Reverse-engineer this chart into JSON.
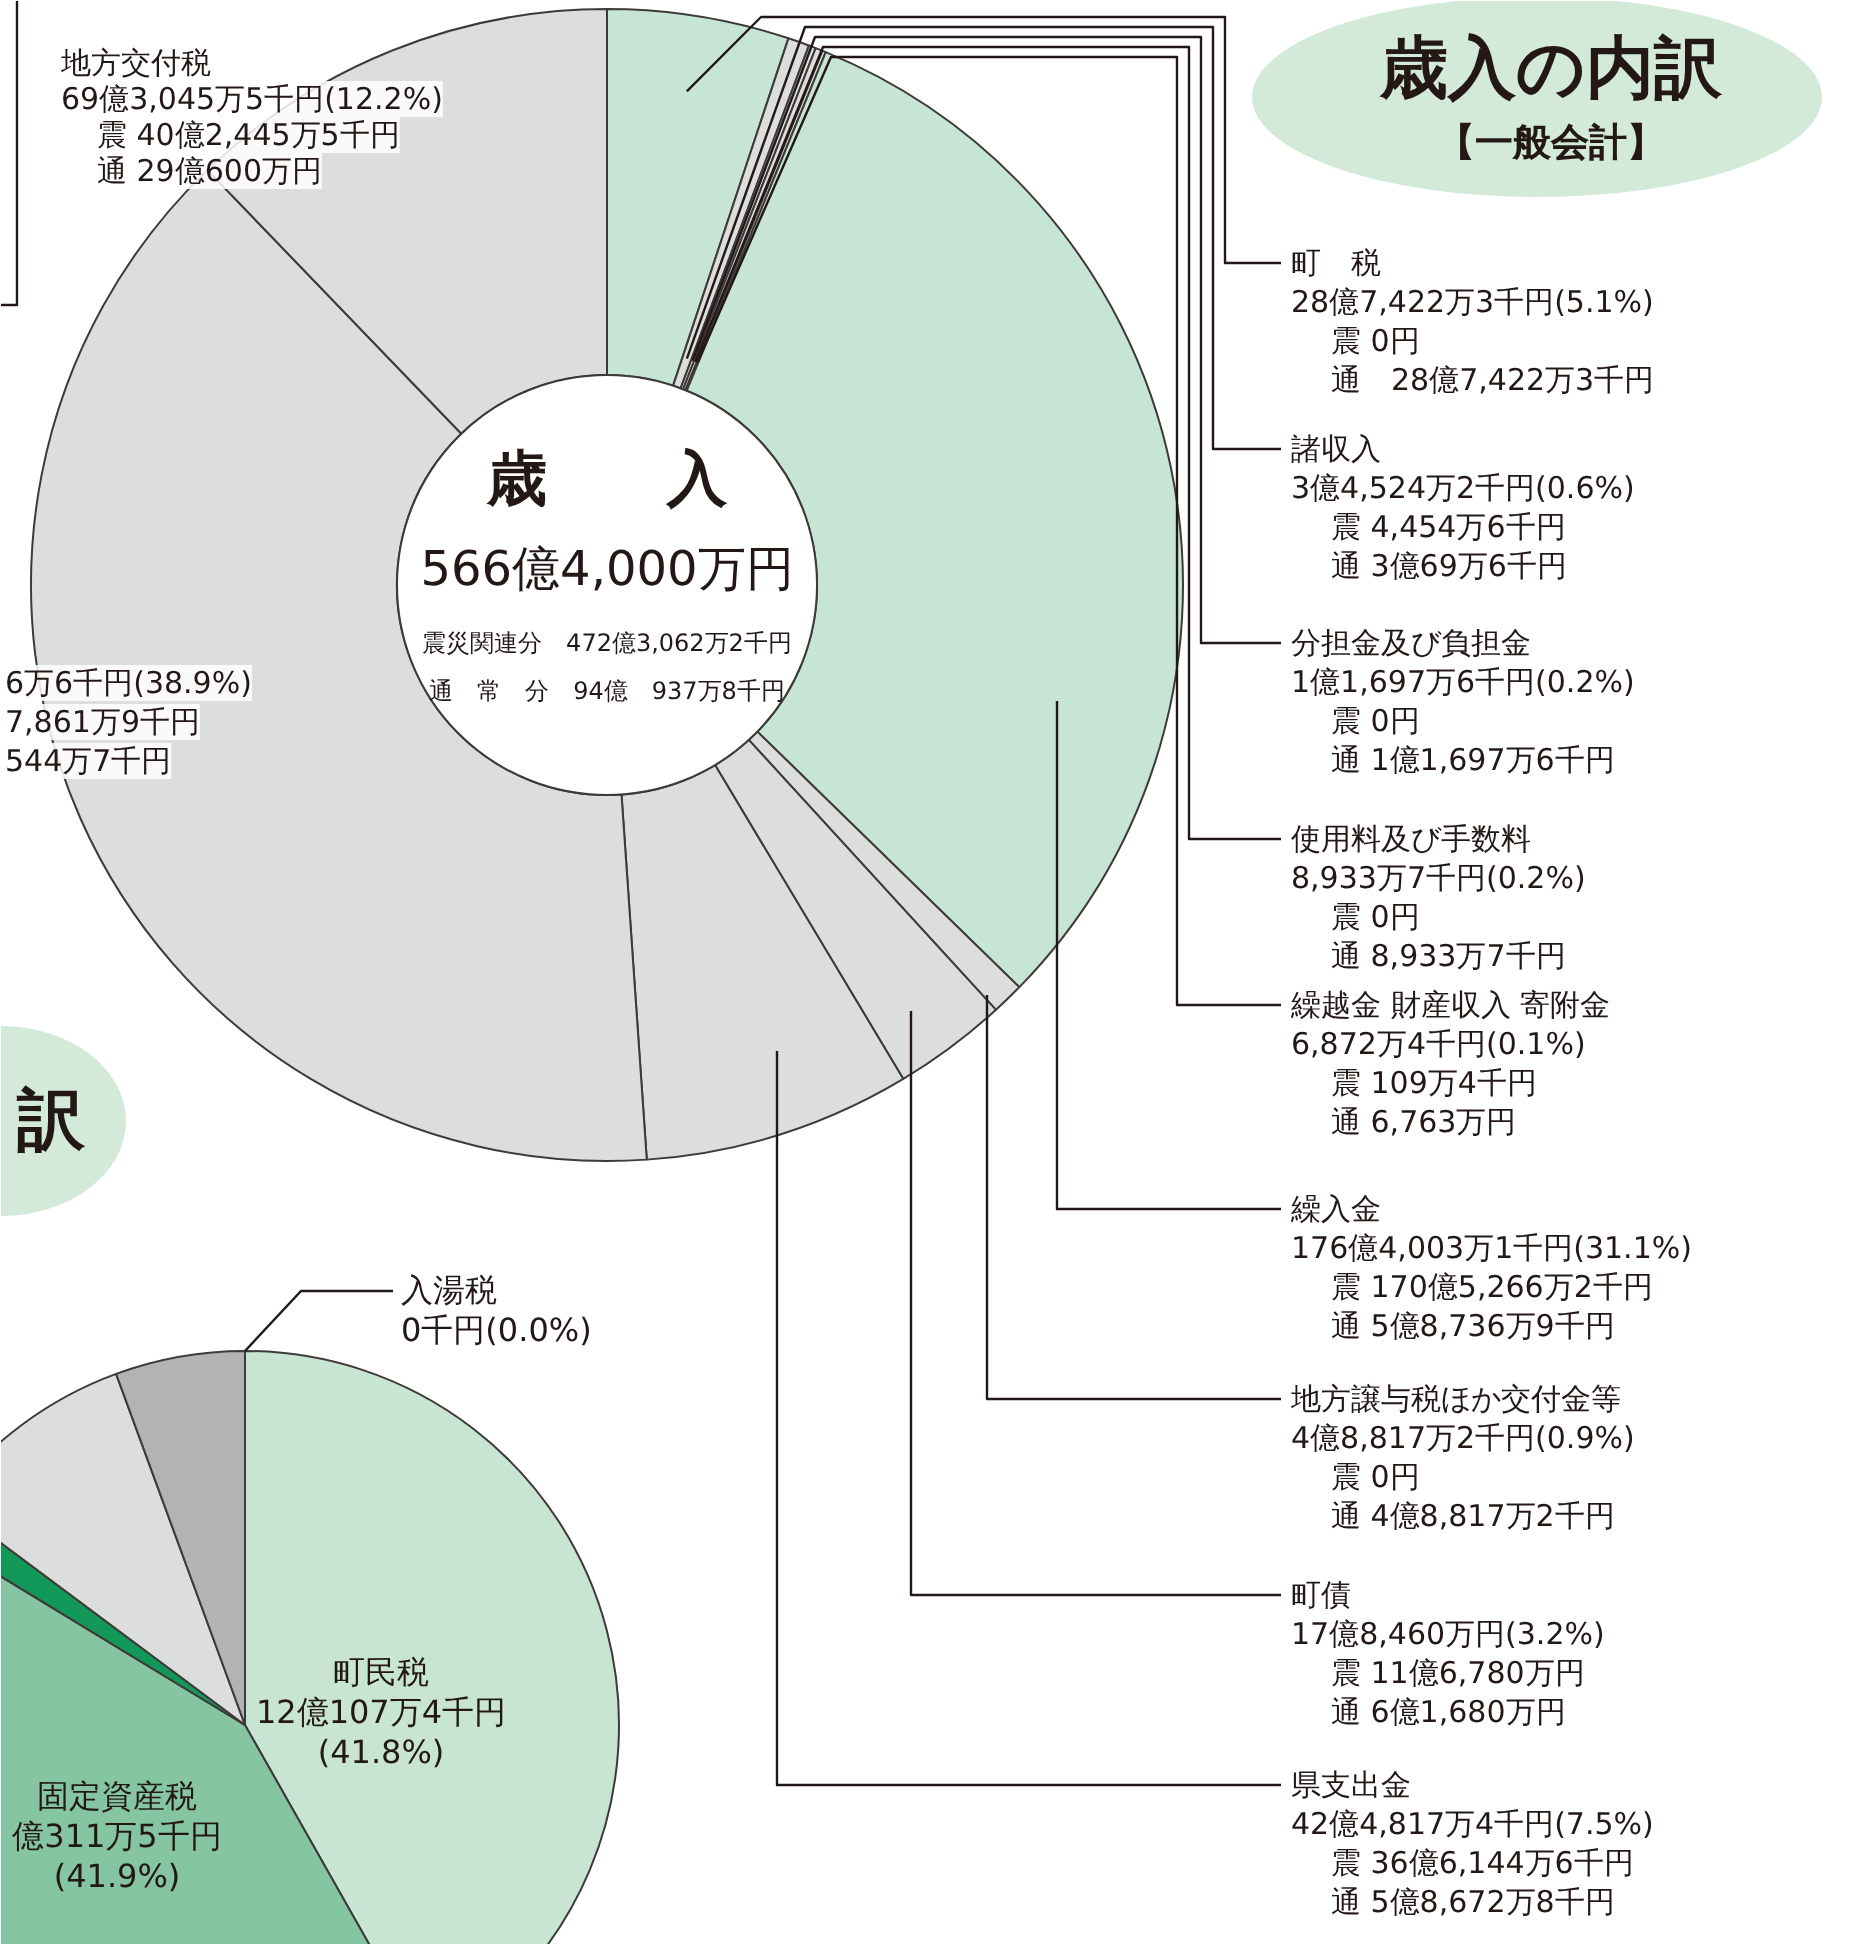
{
  "chart_data": [
    {
      "type": "donut",
      "title": "歳入の内訳",
      "subtitle": "【一般会計】",
      "categories": [
        "町　税",
        "諸収入",
        "分担金及び負担金",
        "使用料及び手数料",
        "繰越金 財産収入 寄附金",
        "繰入金",
        "地方譲与税ほか交付金等",
        "町債",
        "県支出金",
        null,
        "地方交付税"
      ],
      "values": [
        5.1,
        0.6,
        0.2,
        0.2,
        0.1,
        31.1,
        0.9,
        3.2,
        7.5,
        38.9,
        12.2
      ],
      "colors": [
        "#c6e5d4",
        "#dcdddd",
        "#dcdddd",
        "#dcdddd",
        "#dcdddd",
        "#c6e5d4",
        "#dcdddd",
        "#dcdddd",
        "#dcdddd",
        "#dcdddd",
        "#dcdddd"
      ],
      "value_labels": [
        "28億7,422万3千円(5.1%)",
        "3億4,524万2千円(0.6%)",
        "1億1,697万6千円(0.2%)",
        "8,933万7千円(0.2%)",
        "6,872万4千円(0.1%)",
        "176億4,003万1千円(31.1%)",
        "4億8,817万2千円(0.9%)",
        "17億8,460万円(3.2%)",
        "42億4,817万4千円(7.5%)",
        "6万6千円(38.9%)",
        "69億3,045万5千円(12.2%)"
      ],
      "annotations": [
        "歳　　入",
        "566億4,000万円",
        "震災関連分　472億3,062万2千円",
        "通　常　分　94億　937万8千円",
        "震 0円",
        "通　28億7,422万3千円",
        "震 4,454万6千円",
        "通 3億69万6千円",
        "震 0円",
        "通 1億1,697万6千円",
        "震 0円",
        "通 8,933万7千円",
        "震 109万4千円",
        "通 6,763万円",
        "震 170億5,266万2千円",
        "通 5億8,736万9千円",
        "震 0円",
        "通 4億8,817万2千円",
        "震 11億6,780万円",
        "通 6億1,680万円",
        "震 36億6,144万6千円",
        "通 5億8,672万8千円",
        "7,861万9千円",
        "544万7千円",
        "震 40億2,445万5千円",
        "通 29億600万円"
      ]
    },
    {
      "type": "pie",
      "title": "訳",
      "categories": [
        "町民税",
        "固定資産税",
        null,
        null,
        null,
        "入湯税"
      ],
      "values": [
        41.8,
        41.9,
        1.5,
        9.2,
        5.6,
        0.0
      ],
      "colors": [
        "#c8e5d4",
        "#85c5a1",
        "#12995a",
        "#dcdddd",
        "#b3b3b3",
        "#dcdddd"
      ],
      "value_labels": [
        "(41.8%)",
        "(41.9%)",
        null,
        null,
        null,
        "0千円(0.0%)"
      ],
      "annotations": [
        "12億107万4千円",
        "億311万5千円"
      ]
    }
  ]
}
